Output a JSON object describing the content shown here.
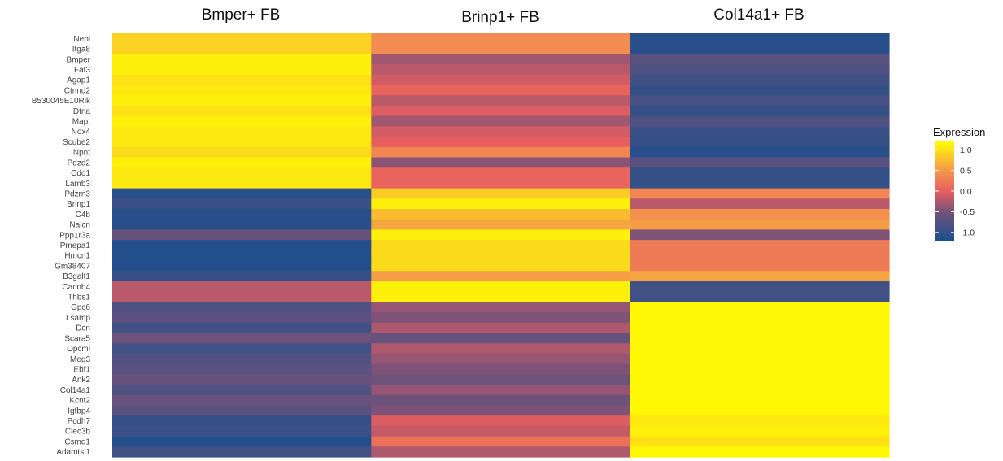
{
  "chart_data": {
    "type": "heatmap",
    "columns": [
      "Bmper+ FB",
      "Brinp1+ FB",
      "Col14a1+ FB"
    ],
    "rows": [
      "Nebl",
      "Itga8",
      "Bmper",
      "Fat3",
      "Agap1",
      "Ctnnd2",
      "B530045E10Rik",
      "Dtna",
      "Mapt",
      "Nox4",
      "Scube2",
      "Npnt",
      "Pdzd2",
      "Cdo1",
      "Lamb3",
      "Pdzrn3",
      "Brinp1",
      "C4b",
      "Nalcn",
      "Ppp1r3a",
      "Pmepa1",
      "Hmcn1",
      "Gm38407",
      "B3galt1",
      "Cacnb4",
      "Thbs1",
      "Gpc6",
      "Lsamp",
      "Dcn",
      "Scara5",
      "Opcml",
      "Meg3",
      "Ebf1",
      "Ank2",
      "Col14a1",
      "Kcnt2",
      "Igfbp4",
      "Pcdh7",
      "Clec3b",
      "Csmd1",
      "Adamtsl1"
    ],
    "values": [
      [
        0.9,
        0.4,
        -1.1
      ],
      [
        0.9,
        0.4,
        -1.1
      ],
      [
        1.1,
        -0.3,
        -0.7
      ],
      [
        1.1,
        -0.2,
        -0.8
      ],
      [
        1.0,
        -0.1,
        -0.9
      ],
      [
        1.05,
        0.05,
        -1.0
      ],
      [
        1.1,
        -0.2,
        -0.85
      ],
      [
        1.0,
        -0.05,
        -1.0
      ],
      [
        1.1,
        -0.3,
        -0.8
      ],
      [
        1.05,
        -0.1,
        -0.95
      ],
      [
        1.05,
        0.0,
        -1.0
      ],
      [
        0.95,
        0.35,
        -1.1
      ],
      [
        1.1,
        -0.4,
        -0.7
      ],
      [
        1.05,
        0.05,
        -1.0
      ],
      [
        1.05,
        0.05,
        -1.0
      ],
      [
        -1.1,
        0.85,
        0.35
      ],
      [
        -0.95,
        1.1,
        -0.2
      ],
      [
        -1.1,
        0.75,
        0.45
      ],
      [
        -1.1,
        0.6,
        0.55
      ],
      [
        -0.6,
        1.1,
        -0.45
      ],
      [
        -1.15,
        0.95,
        0.25
      ],
      [
        -1.15,
        0.95,
        0.25
      ],
      [
        -1.15,
        0.95,
        0.25
      ],
      [
        -1.0,
        0.55,
        0.6
      ],
      [
        -0.2,
        1.1,
        -0.9
      ],
      [
        -0.2,
        1.1,
        -0.9
      ],
      [
        -0.8,
        -0.35,
        1.15
      ],
      [
        -0.7,
        -0.45,
        1.15
      ],
      [
        -0.9,
        -0.25,
        1.15
      ],
      [
        -0.55,
        -0.6,
        1.15
      ],
      [
        -0.9,
        -0.25,
        1.15
      ],
      [
        -0.8,
        -0.35,
        1.15
      ],
      [
        -0.7,
        -0.45,
        1.15
      ],
      [
        -0.6,
        -0.55,
        1.15
      ],
      [
        -0.8,
        -0.35,
        1.15
      ],
      [
        -0.6,
        -0.55,
        1.15
      ],
      [
        -0.7,
        -0.45,
        1.15
      ],
      [
        -1.0,
        -0.05,
        1.05
      ],
      [
        -0.95,
        -0.15,
        1.1
      ],
      [
        -1.15,
        0.15,
        1.0
      ],
      [
        -0.9,
        -0.25,
        1.15
      ]
    ],
    "color_scale": {
      "stops": [
        {
          "value": -1.2,
          "color": "#1c4f8c"
        },
        {
          "value": -0.5,
          "color": "#73527b"
        },
        {
          "value": 0.0,
          "color": "#e85e5f"
        },
        {
          "value": 0.5,
          "color": "#f5974c"
        },
        {
          "value": 1.2,
          "color": "#ffff00"
        }
      ]
    },
    "legend": {
      "title": "Expression",
      "ticks": [
        1.0,
        0.5,
        0.0,
        -0.5,
        -1.0
      ],
      "tick_labels": [
        "1.0",
        "0.5",
        "0.0",
        "-0.5",
        "-1.0"
      ],
      "placement": "right"
    },
    "grid": false
  }
}
